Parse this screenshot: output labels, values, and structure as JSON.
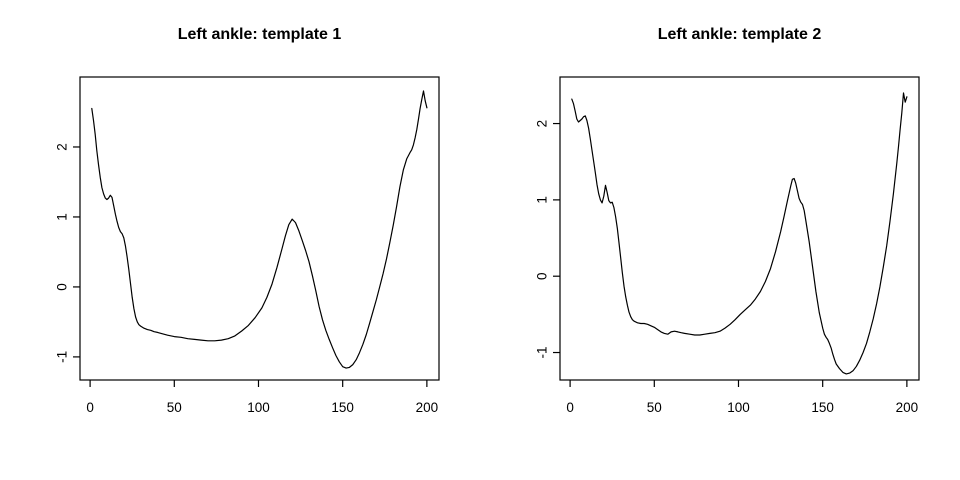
{
  "figure": {
    "background": "#ffffff",
    "line_color": "#000000",
    "text_color": "#000000"
  },
  "chart_data": [
    {
      "type": "line",
      "title": "Left ankle: template 1",
      "xlabel": "",
      "ylabel": "",
      "grid": false,
      "legend": "none",
      "x_ticks": [
        0,
        50,
        100,
        150,
        200
      ],
      "y_ticks": [
        -1,
        0,
        1,
        2
      ],
      "xlim": [
        -6,
        207.2
      ],
      "ylim": [
        -1.33,
        3.0
      ],
      "x": [
        1,
        2,
        3,
        4,
        5,
        6,
        7,
        8,
        9,
        10,
        11,
        12,
        13,
        14,
        15,
        16,
        17,
        18,
        19,
        20,
        21,
        22,
        23,
        24,
        25,
        26,
        27,
        28,
        29,
        30,
        32,
        34,
        36,
        38,
        40,
        43,
        46,
        50,
        54,
        58,
        62,
        66,
        70,
        74,
        78,
        82,
        86,
        90,
        94,
        98,
        102,
        105,
        108,
        111,
        114,
        116,
        118,
        120,
        122,
        124,
        126,
        128,
        130,
        132,
        134,
        136,
        138,
        140,
        142,
        144,
        146,
        148,
        150,
        152,
        154,
        156,
        158,
        160,
        162,
        164,
        166,
        168,
        170,
        172,
        174,
        176,
        178,
        180,
        182,
        184,
        186,
        188,
        190,
        191,
        192,
        193,
        194,
        195,
        196,
        197,
        198,
        199,
        200
      ],
      "y": [
        2.55,
        2.38,
        2.18,
        1.95,
        1.75,
        1.57,
        1.42,
        1.33,
        1.27,
        1.25,
        1.27,
        1.31,
        1.28,
        1.16,
        1.04,
        0.94,
        0.85,
        0.79,
        0.76,
        0.7,
        0.58,
        0.43,
        0.25,
        0.05,
        -0.15,
        -0.31,
        -0.43,
        -0.5,
        -0.54,
        -0.56,
        -0.59,
        -0.61,
        -0.62,
        -0.64,
        -0.65,
        -0.67,
        -0.69,
        -0.71,
        -0.72,
        -0.74,
        -0.75,
        -0.76,
        -0.77,
        -0.77,
        -0.76,
        -0.74,
        -0.7,
        -0.63,
        -0.55,
        -0.44,
        -0.3,
        -0.15,
        0.04,
        0.28,
        0.55,
        0.73,
        0.89,
        0.97,
        0.92,
        0.8,
        0.66,
        0.52,
        0.36,
        0.16,
        -0.05,
        -0.28,
        -0.47,
        -0.62,
        -0.75,
        -0.87,
        -0.98,
        -1.07,
        -1.14,
        -1.16,
        -1.15,
        -1.11,
        -1.04,
        -0.94,
        -0.82,
        -0.68,
        -0.52,
        -0.35,
        -0.18,
        0.0,
        0.19,
        0.4,
        0.63,
        0.88,
        1.15,
        1.43,
        1.67,
        1.83,
        1.92,
        1.96,
        2.03,
        2.13,
        2.25,
        2.4,
        2.55,
        2.68,
        2.8,
        2.66,
        2.56
      ]
    },
    {
      "type": "line",
      "title": "Left ankle: template 2",
      "xlabel": "",
      "ylabel": "",
      "grid": false,
      "legend": "none",
      "x_ticks": [
        0,
        50,
        100,
        150,
        200
      ],
      "y_ticks": [
        -1,
        0,
        1,
        2
      ],
      "xlim": [
        -6,
        207.2
      ],
      "ylim": [
        -1.36,
        2.61
      ],
      "x": [
        1,
        2,
        3,
        4,
        5,
        6,
        7,
        8,
        9,
        10,
        11,
        12,
        13,
        14,
        15,
        16,
        17,
        18,
        19,
        20,
        21,
        22,
        23,
        24,
        25,
        26,
        27,
        28,
        29,
        30,
        31,
        32,
        33,
        34,
        35,
        36,
        37,
        38,
        40,
        42,
        44,
        46,
        48,
        50,
        52,
        54,
        56,
        58,
        60,
        62,
        64,
        66,
        68,
        71,
        74,
        77,
        80,
        83,
        86,
        89,
        92,
        95,
        98,
        101,
        104,
        107,
        110,
        113,
        116,
        119,
        122,
        125,
        127,
        129,
        131,
        132,
        133,
        134,
        135,
        136,
        137,
        138,
        139,
        140,
        142,
        144,
        146,
        148,
        150,
        151,
        152,
        153,
        154,
        155,
        156,
        157,
        158,
        160,
        162,
        164,
        166,
        168,
        170,
        172,
        174,
        176,
        178,
        180,
        182,
        184,
        186,
        188,
        190,
        192,
        194,
        195,
        196,
        197,
        198,
        199,
        200
      ],
      "y": [
        2.32,
        2.26,
        2.16,
        2.06,
        2.02,
        2.04,
        2.06,
        2.09,
        2.1,
        2.04,
        1.94,
        1.8,
        1.65,
        1.5,
        1.35,
        1.2,
        1.08,
        1.0,
        0.96,
        1.05,
        1.19,
        1.1,
        0.99,
        0.96,
        0.97,
        0.9,
        0.78,
        0.63,
        0.45,
        0.25,
        0.05,
        -0.13,
        -0.27,
        -0.38,
        -0.47,
        -0.53,
        -0.57,
        -0.59,
        -0.61,
        -0.62,
        -0.62,
        -0.63,
        -0.65,
        -0.67,
        -0.7,
        -0.73,
        -0.75,
        -0.76,
        -0.73,
        -0.72,
        -0.73,
        -0.74,
        -0.75,
        -0.76,
        -0.77,
        -0.77,
        -0.76,
        -0.75,
        -0.74,
        -0.72,
        -0.68,
        -0.63,
        -0.57,
        -0.5,
        -0.44,
        -0.38,
        -0.3,
        -0.2,
        -0.07,
        0.1,
        0.32,
        0.58,
        0.78,
        0.98,
        1.18,
        1.27,
        1.28,
        1.22,
        1.12,
        1.02,
        0.97,
        0.94,
        0.86,
        0.73,
        0.45,
        0.12,
        -0.2,
        -0.48,
        -0.68,
        -0.76,
        -0.8,
        -0.83,
        -0.88,
        -0.94,
        -1.02,
        -1.09,
        -1.15,
        -1.21,
        -1.26,
        -1.28,
        -1.27,
        -1.24,
        -1.18,
        -1.1,
        -1.0,
        -0.88,
        -0.73,
        -0.56,
        -0.36,
        -0.14,
        0.12,
        0.4,
        0.72,
        1.08,
        1.48,
        1.7,
        1.92,
        2.14,
        2.4,
        2.28,
        2.35
      ]
    }
  ]
}
